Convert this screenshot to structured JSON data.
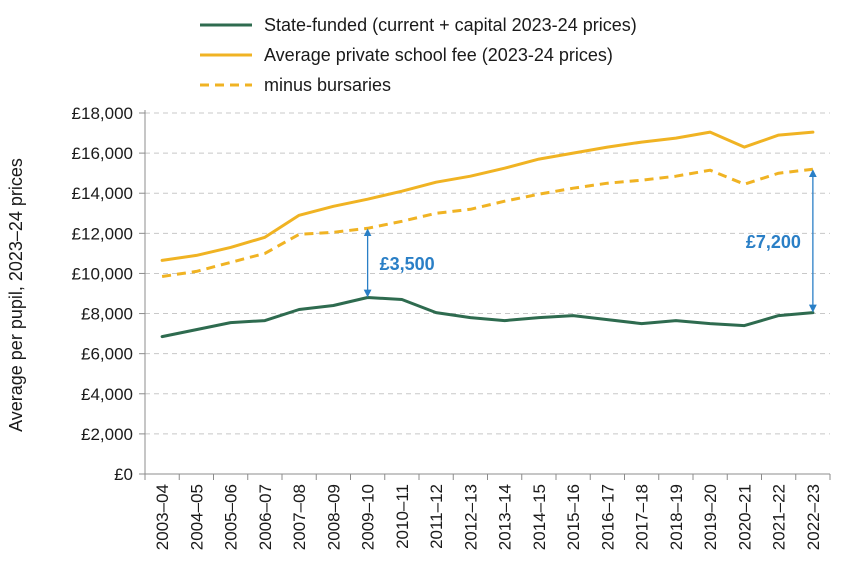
{
  "chart_data": {
    "type": "line",
    "title": "",
    "xlabel": "",
    "ylabel": "Average per pupil, 2023–24 prices",
    "ylim": [
      0,
      18000
    ],
    "yticks": [
      "£0",
      "£2,000",
      "£4,000",
      "£6,000",
      "£8,000",
      "£10,000",
      "£12,000",
      "£14,000",
      "£16,000",
      "£18,000"
    ],
    "grid": "horizontal dashed",
    "legend_position": "top",
    "categories": [
      "2003–04",
      "2004–05",
      "2005–06",
      "2006–07",
      "2007–08",
      "2008–09",
      "2009–10",
      "2010–11",
      "2011–12",
      "2012–13",
      "2013–14",
      "2014–15",
      "2015–16",
      "2016–17",
      "2017–18",
      "2018–19",
      "2019–20",
      "2020–21",
      "2021–22",
      "2022–23"
    ],
    "series": [
      {
        "name": "State-funded (current + capital 2023-24 prices)",
        "color": "#2e6b4f",
        "dash": "solid",
        "values": [
          6850,
          7200,
          7550,
          7650,
          8200,
          8400,
          8800,
          8700,
          8050,
          7800,
          7650,
          7800,
          7900,
          7700,
          7500,
          7650,
          7500,
          7400,
          7900,
          8050
        ]
      },
      {
        "name": "Average private school fee (2023-24 prices)",
        "color": "#f0b323",
        "dash": "solid",
        "values": [
          10650,
          10900,
          11300,
          11800,
          12900,
          13350,
          13700,
          14100,
          14550,
          14850,
          15250,
          15700,
          16000,
          16300,
          16550,
          16750,
          17050,
          16300,
          16900,
          17050
        ]
      },
      {
        "name": "minus bursaries",
        "color": "#f0b323",
        "dash": "dashed",
        "values": [
          9850,
          10100,
          10550,
          11000,
          11950,
          12050,
          12250,
          12600,
          13000,
          13200,
          13600,
          13950,
          14250,
          14500,
          14650,
          14850,
          15150,
          14450,
          15000,
          15200
        ]
      }
    ],
    "annotations": [
      {
        "label": "£3,500",
        "category": "2009–10",
        "from": 8800,
        "to": 12250,
        "color": "#2a7fc6"
      },
      {
        "label": "£7,200",
        "category": "2022–23",
        "from": 8050,
        "to": 15200,
        "color": "#2a7fc6"
      }
    ]
  }
}
